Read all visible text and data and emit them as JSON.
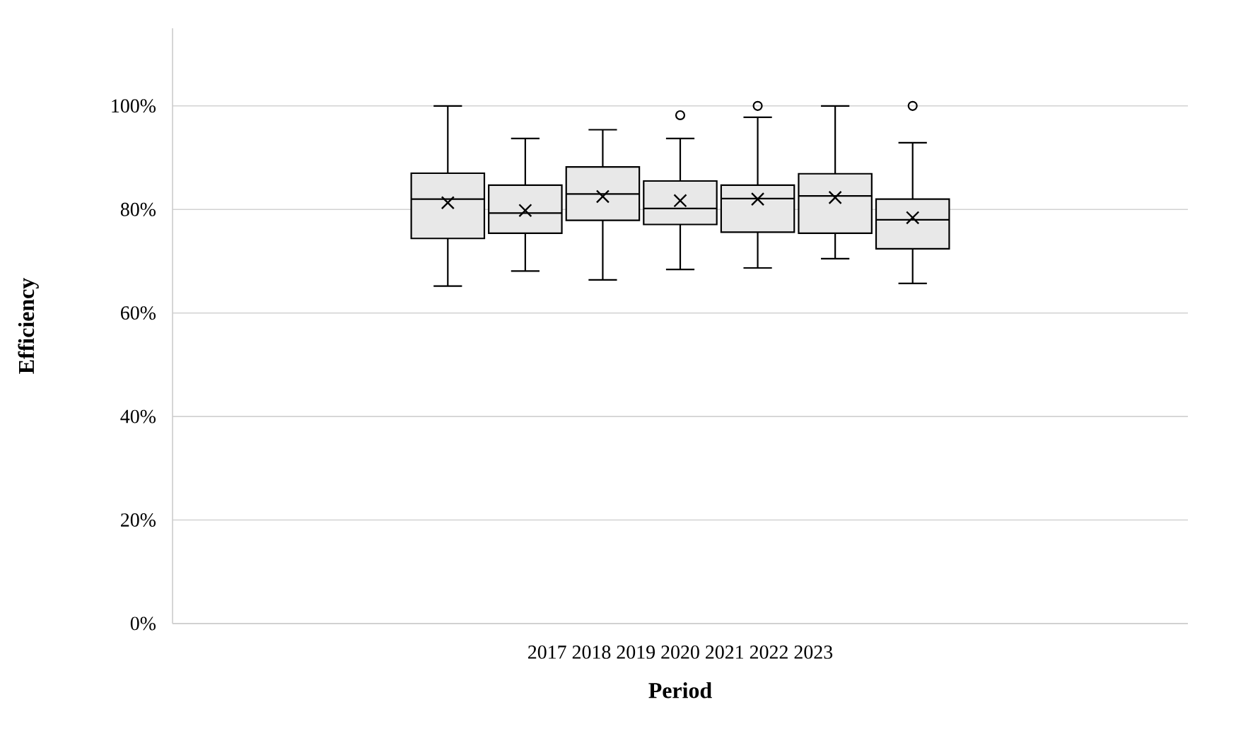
{
  "chart_data": {
    "type": "box",
    "xlabel": "Period",
    "ylabel": "Efficiency",
    "categories": [
      "2017 2018 2019 2020 2021 2022 2023"
    ],
    "series": [
      {
        "color": "#e8e8e8",
        "boxes": [
          {
            "low": 65.2,
            "q1": 74.4,
            "median": 82.0,
            "q3": 87.0,
            "high": 100,
            "mean": 81.3
          }
        ]
      },
      {
        "color": "#e8e8e8",
        "boxes": [
          {
            "low": 68.1,
            "q1": 75.4,
            "median": 79.3,
            "q3": 84.7,
            "high": 93.7,
            "mean": 79.8
          }
        ]
      },
      {
        "color": "#e8e8e8",
        "boxes": [
          {
            "low": 66.4,
            "q1": 77.9,
            "median": 83.0,
            "q3": 88.2,
            "high": 95.4,
            "mean": 82.5
          }
        ]
      },
      {
        "color": "#e8e8e8",
        "boxes": [
          {
            "low": 68.4,
            "q1": 77.1,
            "median": 80.2,
            "q3": 85.5,
            "high": 93.7,
            "mean": 81.7,
            "outliers": [
              98.2
            ]
          }
        ]
      },
      {
        "color": "#e8e8e8",
        "boxes": [
          {
            "low": 68.7,
            "q1": 75.6,
            "median": 82.1,
            "q3": 84.7,
            "high": 97.8,
            "mean": 82.0,
            "outliers": [
              100
            ]
          }
        ]
      },
      {
        "color": "#e8e8e8",
        "boxes": [
          {
            "low": 70.5,
            "q1": 75.4,
            "median": 82.6,
            "q3": 86.9,
            "high": 100,
            "mean": 82.3
          }
        ]
      },
      {
        "color": "#e8e8e8",
        "boxes": [
          {
            "low": 65.7,
            "q1": 72.4,
            "median": 78.0,
            "q3": 82.0,
            "high": 92.9,
            "mean": 78.4,
            "outliers": [
              100
            ]
          }
        ]
      }
    ],
    "ylim": [
      0,
      115
    ],
    "yticks": [
      {
        "value": 0,
        "label": "0%"
      },
      {
        "value": 20,
        "label": "20%"
      },
      {
        "value": 40,
        "label": "40%"
      },
      {
        "value": 60,
        "label": "60%"
      },
      {
        "value": 80,
        "label": "80%"
      },
      {
        "value": 100,
        "label": "100%"
      }
    ],
    "grid": "y"
  }
}
